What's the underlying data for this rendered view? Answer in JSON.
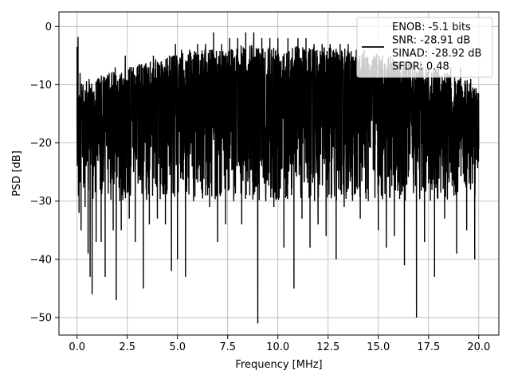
{
  "chart_data": {
    "type": "line",
    "xlabel": "Frequency [MHz]",
    "ylabel": "PSD [dB]",
    "xlim": [
      -0.9,
      21.0
    ],
    "ylim": [
      -53.0,
      2.5
    ],
    "grid": true,
    "legend_position": "top-right",
    "x_ticks": [
      0.0,
      2.5,
      5.0,
      7.5,
      10.0,
      12.5,
      15.0,
      17.5,
      20.0
    ],
    "x_tick_labels": [
      "0.0",
      "2.5",
      "5.0",
      "7.5",
      "10.0",
      "12.5",
      "15.0",
      "17.5",
      "20.0"
    ],
    "y_ticks": [
      0,
      -10,
      -20,
      -30,
      -40,
      -50
    ],
    "y_tick_labels": [
      "0",
      "−10",
      "−20",
      "−30",
      "−40",
      "−50"
    ],
    "line_color": "#000000",
    "series": [
      {
        "x_range": [
          0.0,
          20.0
        ],
        "dense_noise": true,
        "points": [
          [
            0.0,
            -3.5
          ],
          [
            0.02,
            -21
          ],
          [
            0.05,
            -1.8
          ],
          [
            0.1,
            -32
          ],
          [
            0.15,
            -8
          ],
          [
            0.2,
            -35
          ],
          [
            0.3,
            -10
          ],
          [
            0.4,
            -31
          ],
          [
            0.5,
            -13
          ],
          [
            0.55,
            -39
          ],
          [
            0.6,
            -9
          ],
          [
            0.65,
            -43
          ],
          [
            0.7,
            -11
          ],
          [
            0.75,
            -46
          ],
          [
            0.85,
            -12
          ],
          [
            0.95,
            -37
          ],
          [
            1.1,
            -9
          ],
          [
            1.2,
            -37
          ],
          [
            1.3,
            -10
          ],
          [
            1.4,
            -43
          ],
          [
            1.6,
            -8
          ],
          [
            1.8,
            -35
          ],
          [
            1.9,
            -7
          ],
          [
            1.95,
            -47
          ],
          [
            2.1,
            -9
          ],
          [
            2.2,
            -35
          ],
          [
            2.4,
            -5
          ],
          [
            2.6,
            -33
          ],
          [
            2.8,
            -7
          ],
          [
            2.9,
            -37
          ],
          [
            3.1,
            -7
          ],
          [
            3.3,
            -45
          ],
          [
            3.5,
            -7
          ],
          [
            3.6,
            -34
          ],
          [
            3.8,
            -5
          ],
          [
            4.0,
            -33
          ],
          [
            4.2,
            -6
          ],
          [
            4.4,
            -34
          ],
          [
            4.6,
            -5
          ],
          [
            4.7,
            -42
          ],
          [
            4.9,
            -3
          ],
          [
            5.0,
            -40
          ],
          [
            5.2,
            -4
          ],
          [
            5.4,
            -43
          ],
          [
            5.6,
            -4
          ],
          [
            5.8,
            -30
          ],
          [
            6.0,
            -3
          ],
          [
            6.2,
            -28
          ],
          [
            6.4,
            -3
          ],
          [
            6.6,
            -31
          ],
          [
            6.8,
            -1
          ],
          [
            7.0,
            -37
          ],
          [
            7.2,
            -3
          ],
          [
            7.4,
            -34
          ],
          [
            7.6,
            -2
          ],
          [
            7.8,
            -30
          ],
          [
            8.0,
            -2
          ],
          [
            8.2,
            -34
          ],
          [
            8.4,
            -1
          ],
          [
            8.6,
            -29
          ],
          [
            8.8,
            -1
          ],
          [
            9.0,
            -51
          ],
          [
            9.2,
            -2
          ],
          [
            9.4,
            -30
          ],
          [
            9.6,
            -2
          ],
          [
            9.8,
            -31
          ],
          [
            10.0,
            -2
          ],
          [
            10.3,
            -38
          ],
          [
            10.5,
            -2
          ],
          [
            10.8,
            -45
          ],
          [
            11.0,
            -2
          ],
          [
            11.2,
            -33
          ],
          [
            11.4,
            -2
          ],
          [
            11.6,
            -38
          ],
          [
            11.8,
            -3
          ],
          [
            12.0,
            -34
          ],
          [
            12.2,
            -3
          ],
          [
            12.4,
            -36
          ],
          [
            12.6,
            -3
          ],
          [
            12.9,
            -40
          ],
          [
            13.1,
            -3
          ],
          [
            13.3,
            -31
          ],
          [
            13.5,
            -3
          ],
          [
            13.7,
            -29
          ],
          [
            13.9,
            -4
          ],
          [
            14.1,
            -33
          ],
          [
            14.3,
            -4
          ],
          [
            14.5,
            -30
          ],
          [
            14.8,
            -5
          ],
          [
            15.0,
            -35
          ],
          [
            15.2,
            -5
          ],
          [
            15.4,
            -38
          ],
          [
            15.6,
            -5
          ],
          [
            15.8,
            -36
          ],
          [
            16.0,
            -6
          ],
          [
            16.3,
            -41
          ],
          [
            16.5,
            -6
          ],
          [
            16.9,
            -50
          ],
          [
            17.1,
            -6
          ],
          [
            17.3,
            -37
          ],
          [
            17.5,
            -7
          ],
          [
            17.8,
            -43
          ],
          [
            18.0,
            -7
          ],
          [
            18.3,
            -33
          ],
          [
            18.6,
            -7
          ],
          [
            18.9,
            -39
          ],
          [
            19.1,
            -7
          ],
          [
            19.4,
            -35
          ],
          [
            19.6,
            -9
          ],
          [
            19.8,
            -40
          ],
          [
            20.0,
            -19
          ]
        ]
      }
    ],
    "legend_entries": [
      "ENOB: -5.1 bits",
      "SNR: -28.91 dB",
      "SINAD: -28.92 dB",
      "SFDR: 0.48"
    ]
  }
}
